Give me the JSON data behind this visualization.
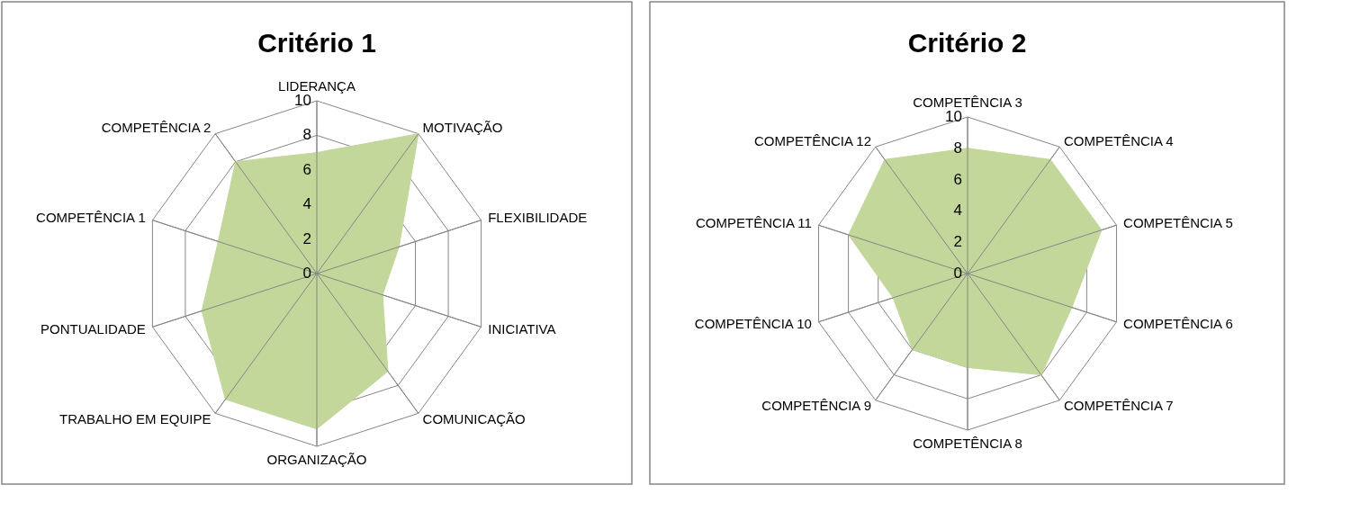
{
  "chart_data": [
    {
      "type": "radar",
      "title": "Critério 1",
      "categories": [
        "LIDERANÇA",
        "MOTIVAÇÃO",
        "FLEXIBILIDADE",
        "INICIATIVA",
        "COMUNICAÇÃO",
        "ORGANIZAÇÃO",
        "TRABALHO EM EQUIPE",
        "PONTUALIDADE",
        "COMPETÊNCIA 1",
        "COMPETÊNCIA 2"
      ],
      "series": [
        {
          "color": "#c4d79b",
          "values": [
            7,
            10,
            5,
            4,
            7,
            9,
            9,
            7,
            6,
            8
          ]
        }
      ],
      "ylim": [
        0,
        10
      ],
      "yticks": [
        0,
        2,
        4,
        6,
        8,
        10
      ],
      "grid": true
    },
    {
      "type": "radar",
      "title": "Critério 2",
      "categories": [
        "COMPETÊNCIA 3",
        "COMPETÊNCIA 4",
        "COMPETÊNCIA 5",
        "COMPETÊNCIA 6",
        "COMPETÊNCIA 7",
        "COMPETÊNCIA 8",
        "COMPETÊNCIA 9",
        "COMPETÊNCIA 10",
        "COMPETÊNCIA 11",
        "COMPETÊNCIA 12"
      ],
      "series": [
        {
          "color": "#c4d79b",
          "values": [
            8,
            9,
            9,
            7,
            8,
            6,
            6,
            5,
            8,
            9
          ]
        }
      ],
      "ylim": [
        0,
        10
      ],
      "yticks": [
        0,
        2,
        4,
        6,
        8,
        10
      ],
      "grid": true
    }
  ]
}
